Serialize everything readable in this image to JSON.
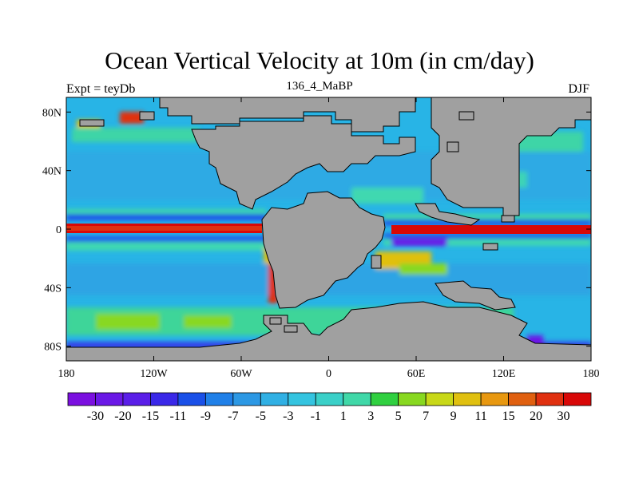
{
  "header": {
    "title": "Ocean Vertical Velocity at 10m (in cm/day)",
    "left_label": "Expt = teyDb",
    "center_label": "136_4_MaBP",
    "right_label": "DJF"
  },
  "map": {
    "lon_range": [
      -180,
      180
    ],
    "lat_range": [
      -90,
      90
    ],
    "land_color": "#a0a0a0",
    "x_ticks": [
      {
        "value": -180,
        "label": "180"
      },
      {
        "value": -120,
        "label": "120W"
      },
      {
        "value": -60,
        "label": "60W"
      },
      {
        "value": 0,
        "label": "0"
      },
      {
        "value": 60,
        "label": "60E"
      },
      {
        "value": 120,
        "label": "120E"
      },
      {
        "value": 180,
        "label": "180"
      }
    ],
    "y_ticks": [
      {
        "value": 80,
        "label": "80N"
      },
      {
        "value": 40,
        "label": "40N"
      },
      {
        "value": 0,
        "label": "0"
      },
      {
        "value": -40,
        "label": "40S"
      },
      {
        "value": -80,
        "label": "80S"
      }
    ]
  },
  "colorbar": {
    "colors": [
      "#7b10e0",
      "#6a18e6",
      "#5a1ee8",
      "#3a28e8",
      "#1a50e8",
      "#2080e8",
      "#2c98e4",
      "#30b0e4",
      "#34c4e0",
      "#3ad0c8",
      "#40d8a8",
      "#30d040",
      "#88d820",
      "#c8d818",
      "#e0c010",
      "#e89810",
      "#e06010",
      "#e03010",
      "#d80808"
    ],
    "labels": [
      "-30",
      "-20",
      "-15",
      "-11",
      "-9",
      "-7",
      "-5",
      "-3",
      "-1",
      "1",
      "3",
      "5",
      "7",
      "9",
      "11",
      "15",
      "20",
      "30"
    ]
  }
}
